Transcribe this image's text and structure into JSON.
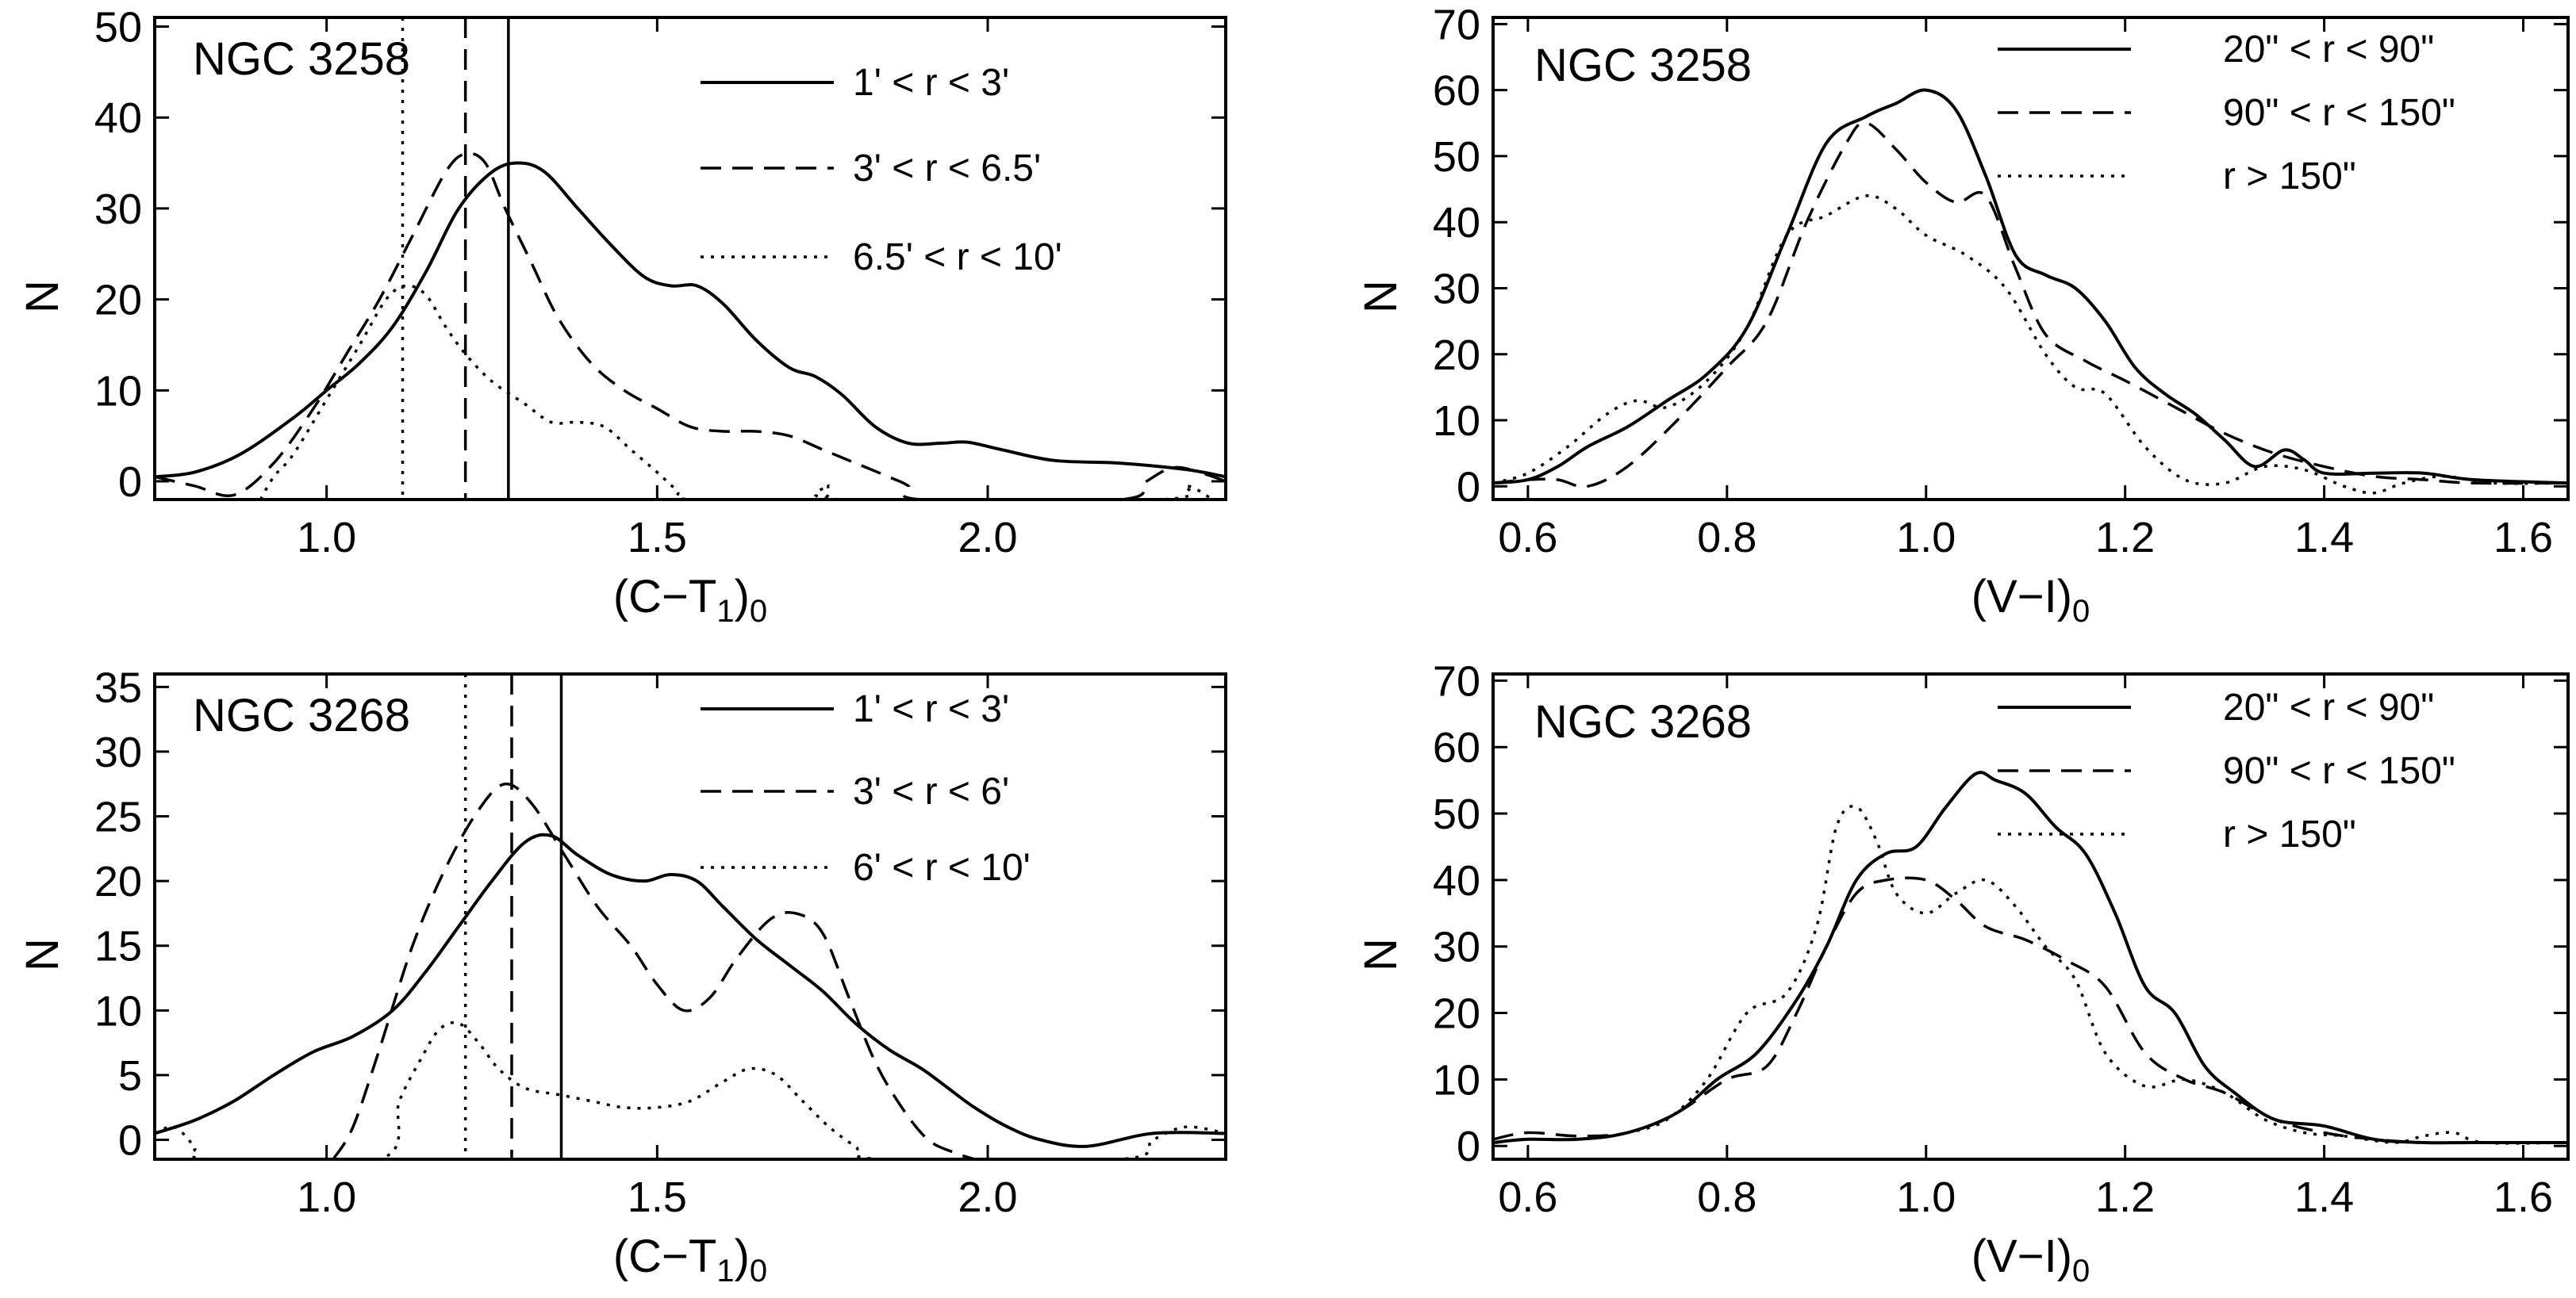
{
  "chart_data": [
    {
      "type": "line",
      "title": "NGC 3258",
      "xlabel": "(C−T",
      "xlabel_sub": "1",
      "xlabel_tail": ")",
      "xlabel_sub2": "0",
      "ylabel": "N",
      "xlim": [
        0.74,
        2.36
      ],
      "ylim": [
        -2,
        51
      ],
      "xticks": [
        1.0,
        1.5,
        2.0
      ],
      "xtick_labels": [
        "1.0",
        "1.5",
        "2.0"
      ],
      "yticks": [
        0,
        10,
        20,
        30,
        40,
        50
      ],
      "ytick_labels": [
        "0",
        "10",
        "20",
        "30",
        "40",
        "50"
      ],
      "vlines": [
        {
          "x": 1.275,
          "style": "solid"
        },
        {
          "x": 1.21,
          "style": "dashed"
        },
        {
          "x": 1.115,
          "style": "dotted"
        }
      ],
      "series": [
        {
          "name": "1' < r < 3'",
          "style": "solid",
          "x": [
            0.74,
            0.8,
            0.87,
            0.95,
            1.0,
            1.05,
            1.1,
            1.15,
            1.2,
            1.25,
            1.29,
            1.33,
            1.38,
            1.43,
            1.48,
            1.52,
            1.56,
            1.6,
            1.65,
            1.7,
            1.74,
            1.78,
            1.83,
            1.88,
            1.93,
            1.97,
            2.02,
            2.1,
            2.2,
            2.3,
            2.36
          ],
          "y": [
            0.5,
            1,
            3,
            7,
            10,
            13,
            17,
            23,
            30,
            34,
            35,
            34,
            30,
            26,
            22.5,
            21.5,
            21.5,
            19.5,
            15.5,
            12.5,
            11.5,
            9.5,
            6,
            4.2,
            4.2,
            4.3,
            3.5,
            2.3,
            2,
            1.3,
            0.5
          ]
        },
        {
          "name": "3' < r < 6.5'",
          "style": "dashed",
          "x": [
            0.74,
            0.8,
            0.86,
            0.92,
            0.98,
            1.03,
            1.08,
            1.13,
            1.18,
            1.21,
            1.24,
            1.27,
            1.31,
            1.35,
            1.4,
            1.45,
            1.5,
            1.55,
            1.6,
            1.65,
            1.7,
            1.75,
            1.8,
            1.85,
            1.88,
            1.9,
            2.2,
            2.24,
            2.28,
            2.32,
            2.36
          ],
          "y": [
            0.5,
            -0.5,
            -1.5,
            2,
            8,
            14,
            20,
            27,
            34,
            36,
            35,
            30,
            24,
            18,
            13,
            10,
            8,
            6,
            5.5,
            5.5,
            5,
            3.5,
            2,
            0.5,
            -0.5,
            -2,
            -2,
            0,
            1.5,
            1,
            0
          ]
        },
        {
          "name": "6.5' < r < 10'",
          "style": "dotted",
          "x": [
            0.9,
            0.92,
            0.95,
            1.0,
            1.05,
            1.09,
            1.12,
            1.15,
            1.18,
            1.21,
            1.25,
            1.3,
            1.34,
            1.38,
            1.42,
            1.46,
            1.5,
            1.53,
            1.55,
            1.74,
            1.76,
            1.78,
            2.26,
            2.3,
            2.34
          ],
          "y": [
            -2,
            0.5,
            3,
            9,
            15,
            20,
            21.5,
            20.5,
            17,
            14,
            11,
            8.5,
            6.5,
            6.5,
            6,
            3.5,
            1,
            -1,
            -2,
            -2,
            -0.5,
            -2,
            -2,
            -0.5,
            -2
          ]
        }
      ]
    },
    {
      "type": "line",
      "title": "NGC 3258",
      "xlabel": "(V−I)",
      "xlabel_sub2": "0",
      "ylabel": "N",
      "xlim": [
        0.565,
        1.645
      ],
      "ylim": [
        -2,
        71
      ],
      "xticks": [
        0.6,
        0.8,
        1.0,
        1.2,
        1.4,
        1.6
      ],
      "xtick_labels": [
        "0.6",
        "0.8",
        "1.0",
        "1.2",
        "1.4",
        "1.6"
      ],
      "yticks": [
        0,
        10,
        20,
        30,
        40,
        50,
        60,
        70
      ],
      "ytick_labels": [
        "0",
        "10",
        "20",
        "30",
        "40",
        "50",
        "60",
        "70"
      ],
      "vlines": [],
      "series": [
        {
          "name": "20\" < r < 90\"",
          "style": "solid",
          "x": [
            0.565,
            0.6,
            0.63,
            0.66,
            0.7,
            0.74,
            0.78,
            0.82,
            0.86,
            0.9,
            0.94,
            0.97,
            1.0,
            1.03,
            1.06,
            1.09,
            1.12,
            1.15,
            1.18,
            1.21,
            1.24,
            1.27,
            1.3,
            1.33,
            1.36,
            1.38,
            1.4,
            1.45,
            1.5,
            1.55,
            1.645
          ],
          "y": [
            0.5,
            1,
            3,
            6,
            9,
            13,
            17,
            24,
            38,
            52,
            56,
            58,
            60,
            57,
            47,
            35,
            32,
            30,
            25,
            18,
            14,
            11,
            7,
            3,
            5.5,
            4,
            2,
            2,
            2,
            1,
            0.5
          ]
        },
        {
          "name": "90\" < r < 150\"",
          "style": "dashed",
          "x": [
            0.565,
            0.6,
            0.63,
            0.66,
            0.7,
            0.75,
            0.8,
            0.84,
            0.88,
            0.92,
            0.94,
            0.97,
            1.0,
            1.03,
            1.06,
            1.09,
            1.12,
            1.16,
            1.2,
            1.25,
            1.3,
            1.35,
            1.4,
            1.45,
            1.5,
            1.55,
            1.645
          ],
          "y": [
            0.5,
            1,
            1,
            0,
            3,
            10,
            18,
            25,
            40,
            52,
            55,
            51,
            46,
            43,
            44,
            33,
            23,
            19,
            16,
            12,
            8,
            5,
            3,
            1.5,
            1,
            0.5,
            0.5
          ]
        },
        {
          "name": "r >  150\"",
          "style": "dotted",
          "x": [
            0.565,
            0.6,
            0.64,
            0.68,
            0.71,
            0.74,
            0.78,
            0.82,
            0.86,
            0.9,
            0.94,
            0.97,
            1.0,
            1.04,
            1.08,
            1.12,
            1.15,
            1.18,
            1.22,
            1.26,
            1.3,
            1.34,
            1.38,
            1.42,
            1.45,
            1.48,
            1.52,
            1.57,
            1.645
          ],
          "y": [
            0.5,
            2,
            6,
            11,
            13,
            12,
            16,
            24,
            38,
            41,
            44,
            42,
            38,
            35,
            30,
            20,
            15,
            14,
            6,
            1,
            0.5,
            3,
            2.5,
            0,
            -1,
            0.5,
            1.5,
            0.5,
            0.5
          ]
        }
      ]
    },
    {
      "type": "line",
      "title": "NGC 3268",
      "xlabel": "(C−T",
      "xlabel_sub": "1",
      "xlabel_tail": ")",
      "xlabel_sub2": "0",
      "ylabel": "N",
      "xlim": [
        0.74,
        2.36
      ],
      "ylim": [
        -1.5,
        36
      ],
      "xticks": [
        1.0,
        1.5,
        2.0
      ],
      "xtick_labels": [
        "1.0",
        "1.5",
        "2.0"
      ],
      "yticks": [
        0,
        5,
        10,
        15,
        20,
        25,
        30,
        35
      ],
      "ytick_labels": [
        "0",
        "5",
        "10",
        "15",
        "20",
        "25",
        "30",
        "35"
      ],
      "vlines": [
        {
          "x": 1.355,
          "style": "solid"
        },
        {
          "x": 1.28,
          "style": "dashed"
        },
        {
          "x": 1.21,
          "style": "dotted"
        }
      ],
      "series": [
        {
          "name": "1' < r < 3'",
          "style": "solid",
          "x": [
            0.74,
            0.8,
            0.86,
            0.92,
            0.98,
            1.04,
            1.1,
            1.15,
            1.2,
            1.25,
            1.3,
            1.34,
            1.38,
            1.43,
            1.48,
            1.52,
            1.56,
            1.6,
            1.65,
            1.7,
            1.75,
            1.8,
            1.85,
            1.9,
            1.94,
            1.98,
            2.03,
            2.08,
            2.15,
            2.25,
            2.36
          ],
          "y": [
            0.5,
            1.5,
            3,
            5,
            6.8,
            8,
            10,
            13,
            16.5,
            20,
            23,
            23.5,
            22,
            20.5,
            20,
            20.5,
            20,
            18,
            15.5,
            13.5,
            11.5,
            9,
            7,
            5.5,
            4,
            2.5,
            1,
            0,
            -0.5,
            0.5,
            0.5
          ]
        },
        {
          "name": "3' < r < 6'",
          "style": "dashed",
          "x": [
            1.01,
            1.04,
            1.08,
            1.13,
            1.18,
            1.23,
            1.27,
            1.31,
            1.36,
            1.41,
            1.46,
            1.5,
            1.54,
            1.58,
            1.62,
            1.67,
            1.71,
            1.75,
            1.79,
            1.83,
            1.87,
            1.91,
            1.95,
            1.98
          ],
          "y": [
            -1.5,
            1,
            7,
            15,
            21,
            25.5,
            27.5,
            26,
            22,
            18,
            15,
            12,
            10,
            11,
            14,
            17,
            17.5,
            16,
            11,
            6,
            2.5,
            0,
            -1,
            -1.5
          ]
        },
        {
          "name": "6' < r < 10'",
          "style": "dotted",
          "x": [
            0.74,
            0.77,
            0.8,
            0.82,
            1.08,
            1.11,
            1.14,
            1.17,
            1.2,
            1.23,
            1.26,
            1.3,
            1.35,
            1.4,
            1.45,
            1.5,
            1.55,
            1.6,
            1.64,
            1.68,
            1.72,
            1.76,
            1.8,
            1.84,
            2.2,
            2.25,
            2.3,
            2.36
          ],
          "y": [
            0.5,
            1,
            -0.5,
            -1.5,
            -1.5,
            3,
            6,
            8.5,
            9,
            7.5,
            5.5,
            4,
            3.5,
            3,
            2.5,
            2.5,
            3,
            4.5,
            5.5,
            5,
            3,
            1,
            -0.5,
            -1.5,
            -1.5,
            0,
            1,
            0.5
          ]
        }
      ]
    },
    {
      "type": "line",
      "title": "NGC 3268",
      "xlabel": "(V−I)",
      "xlabel_sub2": "0",
      "ylabel": "N",
      "xlim": [
        0.565,
        1.645
      ],
      "ylim": [
        -2,
        71
      ],
      "xticks": [
        0.6,
        0.8,
        1.0,
        1.2,
        1.4,
        1.6
      ],
      "xtick_labels": [
        "0.6",
        "0.8",
        "1.0",
        "1.2",
        "1.4",
        "1.6"
      ],
      "yticks": [
        0,
        10,
        20,
        30,
        40,
        50,
        60,
        70
      ],
      "ytick_labels": [
        "0",
        "10",
        "20",
        "30",
        "40",
        "50",
        "60",
        "70"
      ],
      "vlines": [],
      "series": [
        {
          "name": "20\" < r < 90\"",
          "style": "solid",
          "x": [
            0.565,
            0.6,
            0.65,
            0.7,
            0.75,
            0.79,
            0.83,
            0.87,
            0.9,
            0.93,
            0.96,
            0.99,
            1.02,
            1.05,
            1.07,
            1.1,
            1.13,
            1.16,
            1.19,
            1.22,
            1.25,
            1.28,
            1.31,
            1.35,
            1.4,
            1.45,
            1.5,
            1.55,
            1.645
          ],
          "y": [
            0.5,
            1,
            1,
            2,
            5,
            10,
            14,
            22,
            30,
            40,
            44,
            45,
            51,
            56,
            55,
            53,
            48,
            44,
            35,
            24,
            20,
            12,
            8,
            4,
            3,
            1,
            0.5,
            0.5,
            0.5
          ]
        },
        {
          "name": "90\" < r < 150\"",
          "style": "dashed",
          "x": [
            0.565,
            0.6,
            0.65,
            0.7,
            0.75,
            0.8,
            0.84,
            0.87,
            0.9,
            0.93,
            0.96,
            1.0,
            1.03,
            1.06,
            1.1,
            1.14,
            1.18,
            1.22,
            1.26,
            1.3,
            1.35,
            1.4,
            1.45,
            1.5,
            1.55,
            1.645
          ],
          "y": [
            1,
            2,
            1.5,
            2,
            5,
            10,
            12,
            20,
            30,
            38,
            40,
            40,
            37,
            33,
            31,
            28,
            24,
            14,
            10,
            8,
            4,
            2,
            1,
            0.5,
            0.5,
            0.5
          ]
        },
        {
          "name": "r >  150\"",
          "style": "dotted",
          "x": [
            0.565,
            0.6,
            0.65,
            0.7,
            0.74,
            0.78,
            0.82,
            0.86,
            0.89,
            0.91,
            0.93,
            0.95,
            0.97,
            1.0,
            1.03,
            1.06,
            1.09,
            1.12,
            1.15,
            1.18,
            1.22,
            1.26,
            1.3,
            1.34,
            1.38,
            1.42,
            1.47,
            1.5,
            1.53,
            1.56,
            1.645
          ],
          "y": [
            0.5,
            1,
            1,
            2,
            4,
            10,
            20,
            23,
            33,
            48,
            51,
            46,
            38,
            35,
            38,
            40,
            36,
            30,
            25,
            14,
            9,
            10,
            8,
            4,
            2,
            1.5,
            0.5,
            1.5,
            2,
            0.5,
            0.5
          ]
        }
      ]
    }
  ]
}
